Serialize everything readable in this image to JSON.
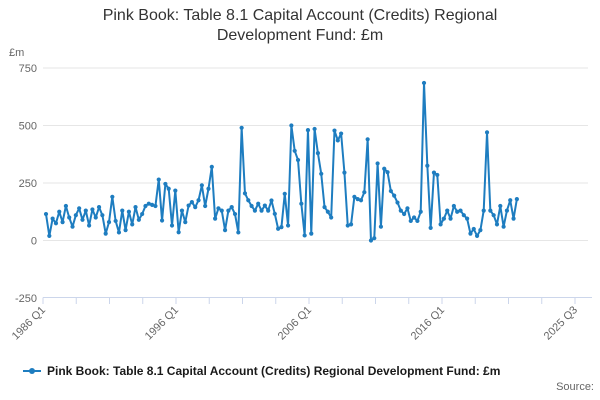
{
  "title": {
    "line1": "Pink Book: Table 8.1 Capital Account (Credits) Regional",
    "line2": "Development Fund: £m"
  },
  "legend": {
    "label": "Pink Book: Table 8.1 Capital Account (Credits) Regional Development Fund: £m",
    "marker": "line-dot-icon"
  },
  "footer": {
    "source_label": "Source:"
  },
  "colors": {
    "line": "#1e7dc0",
    "grid": "#e6e6e6",
    "axis": "#ccd6eb",
    "tick_label": "#666666",
    "title_text": "#333333",
    "legend_text": "#1a1a1a"
  },
  "chart_data": {
    "type": "line",
    "title": "Pink Book: Table 8.1 Capital Account (Credits) Regional Development Fund: £m",
    "ylabel_unit": "£m",
    "frequency": "quarterly",
    "start_period": "1986 Q1",
    "end_period": "2021 Q3",
    "x_tick_labels": [
      "1986 Q1",
      "1996 Q1",
      "2006 Q1",
      "2016 Q1",
      "2025 Q3"
    ],
    "x_minor_ticks_between_labels": 3,
    "y_ticks": [
      750,
      500,
      250,
      0,
      -250
    ],
    "ylim": [
      -250,
      800
    ],
    "grid": true,
    "legend_position": "bottom-left",
    "series": [
      {
        "name": "Pink Book: Table 8.1 Capital Account (Credits) Regional Development Fund: £m",
        "values": [
          115,
          20,
          95,
          75,
          125,
          80,
          150,
          100,
          60,
          110,
          140,
          90,
          130,
          65,
          135,
          100,
          145,
          110,
          30,
          80,
          190,
          85,
          35,
          130,
          45,
          125,
          70,
          145,
          90,
          115,
          150,
          160,
          155,
          150,
          265,
          87,
          246,
          225,
          65,
          217,
          36,
          130,
          80,
          152,
          167,
          145,
          175,
          240,
          150,
          225,
          320,
          95,
          140,
          130,
          45,
          130,
          145,
          115,
          35,
          490,
          205,
          175,
          150,
          130,
          160,
          130,
          152,
          130,
          174,
          116,
          51,
          58,
          203,
          65,
          500,
          390,
          350,
          160,
          22,
          480,
          30,
          485,
          380,
          290,
          145,
          125,
          100,
          478,
          435,
          465,
          295,
          65,
          70,
          190,
          180,
          175,
          210,
          440,
          0,
          10,
          335,
          60,
          312,
          297,
          215,
          195,
          165,
          130,
          115,
          140,
          85,
          100,
          85,
          125,
          685,
          325,
          55,
          295,
          285,
          70,
          95,
          130,
          95,
          150,
          125,
          130,
          110,
          95,
          30,
          50,
          20,
          45,
          130,
          470,
          130,
          110,
          70,
          150,
          60,
          130,
          175,
          95,
          180
        ]
      }
    ]
  }
}
